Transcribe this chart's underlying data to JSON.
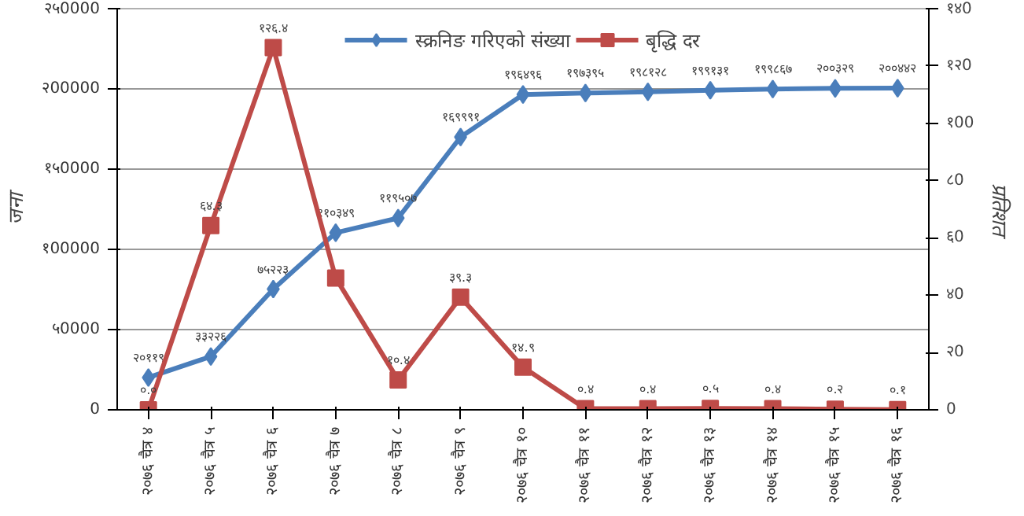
{
  "chart_data": {
    "type": "line",
    "categories": [
      "२०७६ चैत्र ४",
      "२०७६ चैत्र ५",
      "२०७६ चैत्र ६",
      "२०७६ चैत्र ७",
      "२०७६ चैत्र ८",
      "२०७६ चैत्र ९",
      "२०७६ चैत्र १०",
      "२०७६ चैत्र ११",
      "२०७६ चैत्र १२",
      "२०७६ चैत्र १३",
      "२०७६ चैत्र १४",
      "२०७६ चैत्र १५",
      "२०७६ चैत्र १६"
    ],
    "series": [
      {
        "name": "स्क्रनिङ गरिएको संख्या",
        "color": "#4a7ebb",
        "marker": "diamond",
        "values": [
          20119,
          33226,
          75223,
          110349,
          119507,
          169991,
          196496,
          197395,
          198128,
          199131,
          199867,
          200329,
          200442
        ],
        "value_labels": [
          "२०११९",
          "३३२२६",
          "७५२२३",
          "११०३४९",
          "११९५०७",
          "१६९९९१",
          "१९६४९६",
          "१९७३९५",
          "१९८१२८",
          "१९९१३१",
          "१९९८६७",
          "२००३२९",
          "२००४४२"
        ]
      },
      {
        "name": "बृद्धि दर",
        "color": "#be4b48",
        "marker": "square",
        "axis": "y2",
        "values": [
          0.0,
          64.3,
          126.4,
          46,
          10.4,
          39.3,
          14.9,
          0.4,
          0.4,
          0.5,
          0.4,
          0.2,
          0.1
        ],
        "value_labels": [
          "०.०",
          "६४.३",
          "१२६.४",
          null,
          "१०.४",
          "३९.३",
          "१४.९",
          "०.४",
          "०.४",
          "०.५",
          "०.४",
          "०.२",
          "०.१"
        ]
      }
    ],
    "ylabel": "जना",
    "y2label": "प्रतिशत",
    "ylim": [
      0,
      250000
    ],
    "yticks": [
      {
        "value": 0,
        "label": "0"
      },
      {
        "value": 50000,
        "label": "५0000"
      },
      {
        "value": 100000,
        "label": "१00000"
      },
      {
        "value": 150000,
        "label": "१५0000"
      },
      {
        "value": 200000,
        "label": "२00000"
      },
      {
        "value": 250000,
        "label": "२५0000"
      }
    ],
    "y2lim": [
      0,
      140
    ],
    "y2ticks": [
      {
        "value": 0,
        "label": "0"
      },
      {
        "value": 20,
        "label": "२0"
      },
      {
        "value": 40,
        "label": "४0"
      },
      {
        "value": 60,
        "label": "६0"
      },
      {
        "value": 80,
        "label": "८0"
      },
      {
        "value": 100,
        "label": "१00"
      },
      {
        "value": 120,
        "label": "१२0"
      },
      {
        "value": 140,
        "label": "१४0"
      }
    ],
    "grid": "y",
    "legend": "top",
    "line_style": "solid"
  }
}
